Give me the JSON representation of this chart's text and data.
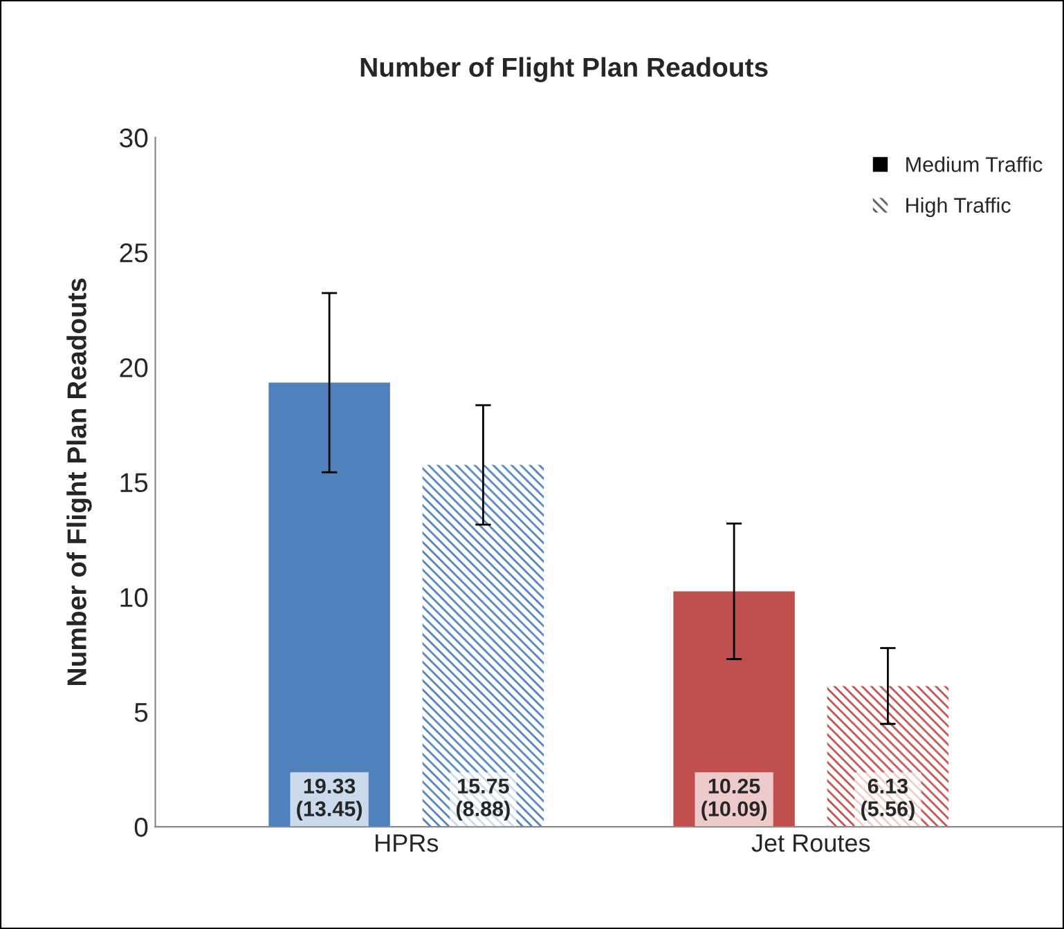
{
  "chart_data": {
    "type": "bar",
    "title": "Number of Flight Plan Readouts",
    "ylabel": "Number of Flight Plan Readouts",
    "categories": [
      "HPRs",
      "Jet Routes"
    ],
    "series": [
      {
        "name": "Medium Traffic",
        "color": "#000000",
        "colors": [
          "#4f81bd",
          "#c0504d"
        ],
        "values": [
          19.33,
          10.25
        ],
        "errors": [
          3.9,
          2.95
        ],
        "value_labels": [
          "19.33\n(13.45)",
          "10.25\n(10.09)"
        ]
      },
      {
        "name": "High Traffic",
        "color": "#555555",
        "colors": [
          "#4f81bd",
          "#c0504d"
        ],
        "values": [
          15.75,
          6.13
        ],
        "errors": [
          2.6,
          1.65
        ],
        "value_labels": [
          "15.75\n(8.88)",
          "6.13\n(5.56)"
        ]
      }
    ],
    "ylim": [
      0,
      30
    ],
    "yticks": [
      0,
      5,
      10,
      15,
      20,
      25,
      30
    ],
    "grid": false,
    "legend": "top right"
  }
}
